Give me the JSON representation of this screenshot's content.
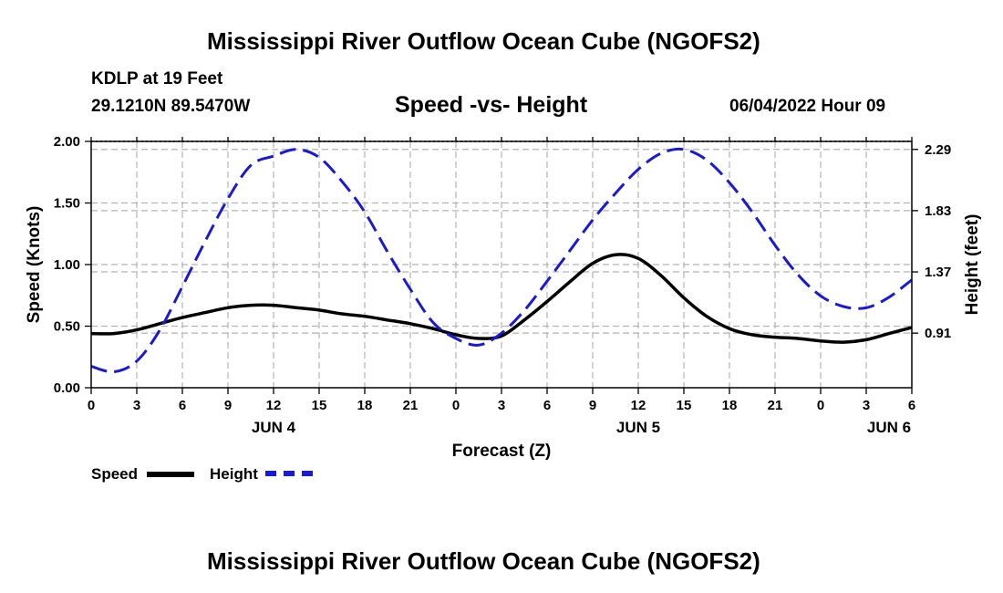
{
  "header": {
    "title": "Mississippi River Outflow Ocean Cube (NGOFS2)",
    "station": "KDLP at 19 Feet",
    "coords": "29.1210N  89.5470W",
    "chart_title": "Speed -vs- Height",
    "datetime": "06/04/2022 Hour 09"
  },
  "footer": {
    "title": "Mississippi River Outflow Ocean Cube (NGOFS2)"
  },
  "legend": {
    "speed_label": "Speed",
    "height_label": "Height"
  },
  "colors": {
    "speed": "#000000",
    "height": "#1a1ad6",
    "grid": "#b4b4b4"
  },
  "chart_data": {
    "type": "line",
    "title": "Speed -vs- Height",
    "xlabel": "Forecast (Z)",
    "ylabel": "Speed (Knots)",
    "y2label": "Height (feet)",
    "xlim": [
      0,
      54
    ],
    "ylim": [
      0,
      2.0
    ],
    "y2lim": [
      0.5,
      2.35
    ],
    "x_ticks": [
      0,
      3,
      6,
      9,
      12,
      15,
      18,
      21,
      24,
      27,
      30,
      33,
      36,
      39,
      42,
      45,
      48,
      51,
      54
    ],
    "x_tick_labels": [
      "0",
      "3",
      "6",
      "9",
      "12",
      "15",
      "18",
      "21",
      "0",
      "3",
      "6",
      "9",
      "12",
      "15",
      "18",
      "21",
      "0",
      "3",
      "6"
    ],
    "date_labels": [
      {
        "x": 12,
        "label": "JUN 4"
      },
      {
        "x": 36,
        "label": "JUN 5"
      },
      {
        "x": 52.5,
        "label": "JUN 6"
      }
    ],
    "y_ticks": [
      0.0,
      0.5,
      1.0,
      1.5,
      2.0
    ],
    "y_tick_labels": [
      "0.00",
      "0.50",
      "1.00",
      "1.50",
      "2.00"
    ],
    "y2_ticks": [
      0.91,
      1.37,
      1.83,
      2.29
    ],
    "y2_tick_labels": [
      "0.91",
      "1.37",
      "1.83",
      "2.29"
    ],
    "grid": true,
    "series": [
      {
        "name": "Speed",
        "axis": "left",
        "style": "solid",
        "x": [
          0,
          1.5,
          3,
          4.5,
          6,
          7.5,
          9,
          10.5,
          12,
          13.5,
          15,
          16.5,
          18,
          19.5,
          21,
          22.5,
          24,
          25.5,
          27,
          28.5,
          30,
          31.5,
          33,
          34.5,
          36,
          37.5,
          39,
          40.5,
          42,
          43.5,
          45,
          46.5,
          48,
          49.5,
          51,
          52.5,
          54
        ],
        "values": [
          0.44,
          0.44,
          0.47,
          0.52,
          0.57,
          0.61,
          0.65,
          0.67,
          0.67,
          0.65,
          0.63,
          0.6,
          0.58,
          0.55,
          0.52,
          0.48,
          0.43,
          0.4,
          0.42,
          0.55,
          0.7,
          0.86,
          1.01,
          1.08,
          1.05,
          0.91,
          0.73,
          0.58,
          0.48,
          0.43,
          0.41,
          0.4,
          0.38,
          0.37,
          0.39,
          0.44,
          0.49
        ]
      },
      {
        "name": "Height",
        "axis": "right",
        "style": "dashed",
        "x": [
          0,
          1.5,
          3,
          4.5,
          6,
          7.5,
          9,
          10.5,
          12,
          13.5,
          15,
          16.5,
          18,
          19.5,
          21,
          22.5,
          24,
          25.5,
          27,
          28.5,
          30,
          31.5,
          33,
          34.5,
          36,
          37.5,
          39,
          40.5,
          42,
          43.5,
          45,
          46.5,
          48,
          49.5,
          51,
          52.5,
          54
        ],
        "values": [
          0.66,
          0.62,
          0.7,
          0.93,
          1.26,
          1.6,
          1.92,
          2.17,
          2.24,
          2.29,
          2.23,
          2.05,
          1.82,
          1.52,
          1.24,
          0.99,
          0.87,
          0.82,
          0.91,
          1.08,
          1.3,
          1.53,
          1.76,
          1.96,
          2.14,
          2.26,
          2.29,
          2.21,
          2.04,
          1.82,
          1.57,
          1.35,
          1.19,
          1.11,
          1.1,
          1.18,
          1.31
        ]
      }
    ]
  }
}
